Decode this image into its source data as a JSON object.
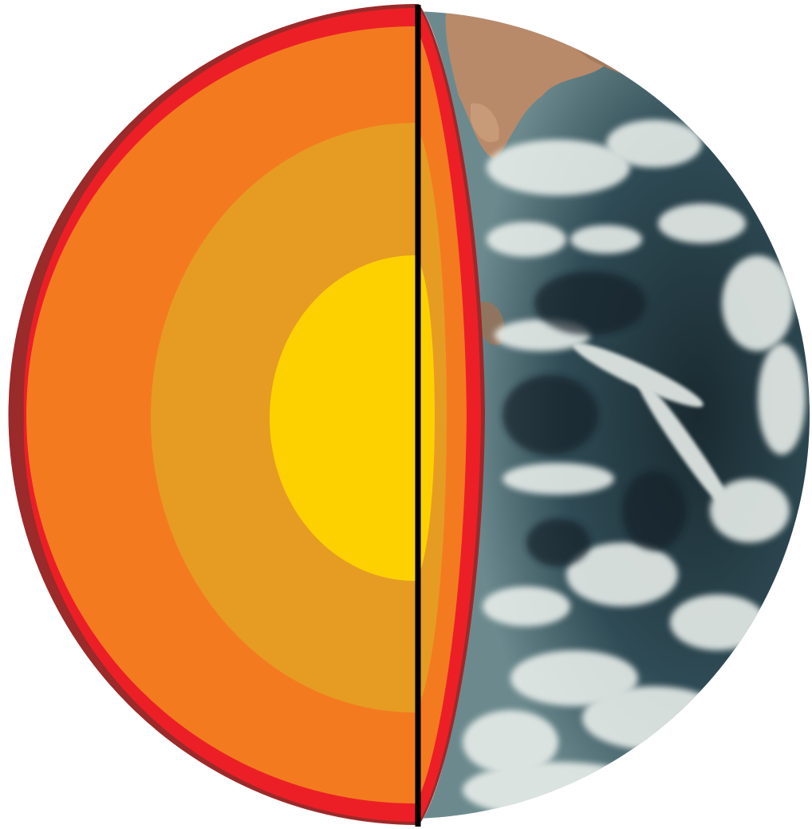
{
  "colors": {
    "background": "#ffffff",
    "outer_rim": "#9b2a2a",
    "crust": "#ec1f26",
    "mantle": "#f47a20",
    "outer_core": "#e69c22",
    "inner_core": "#fdd100",
    "divider": "#000000",
    "ocean_deep": "#1a2a30",
    "ocean": "#2f4b55",
    "ocean_light": "#5d7a80",
    "cloud": "#e8eeea",
    "land": "#b88a6a"
  },
  "icons": {
    "diagram": "earth-cutaway-icon"
  }
}
